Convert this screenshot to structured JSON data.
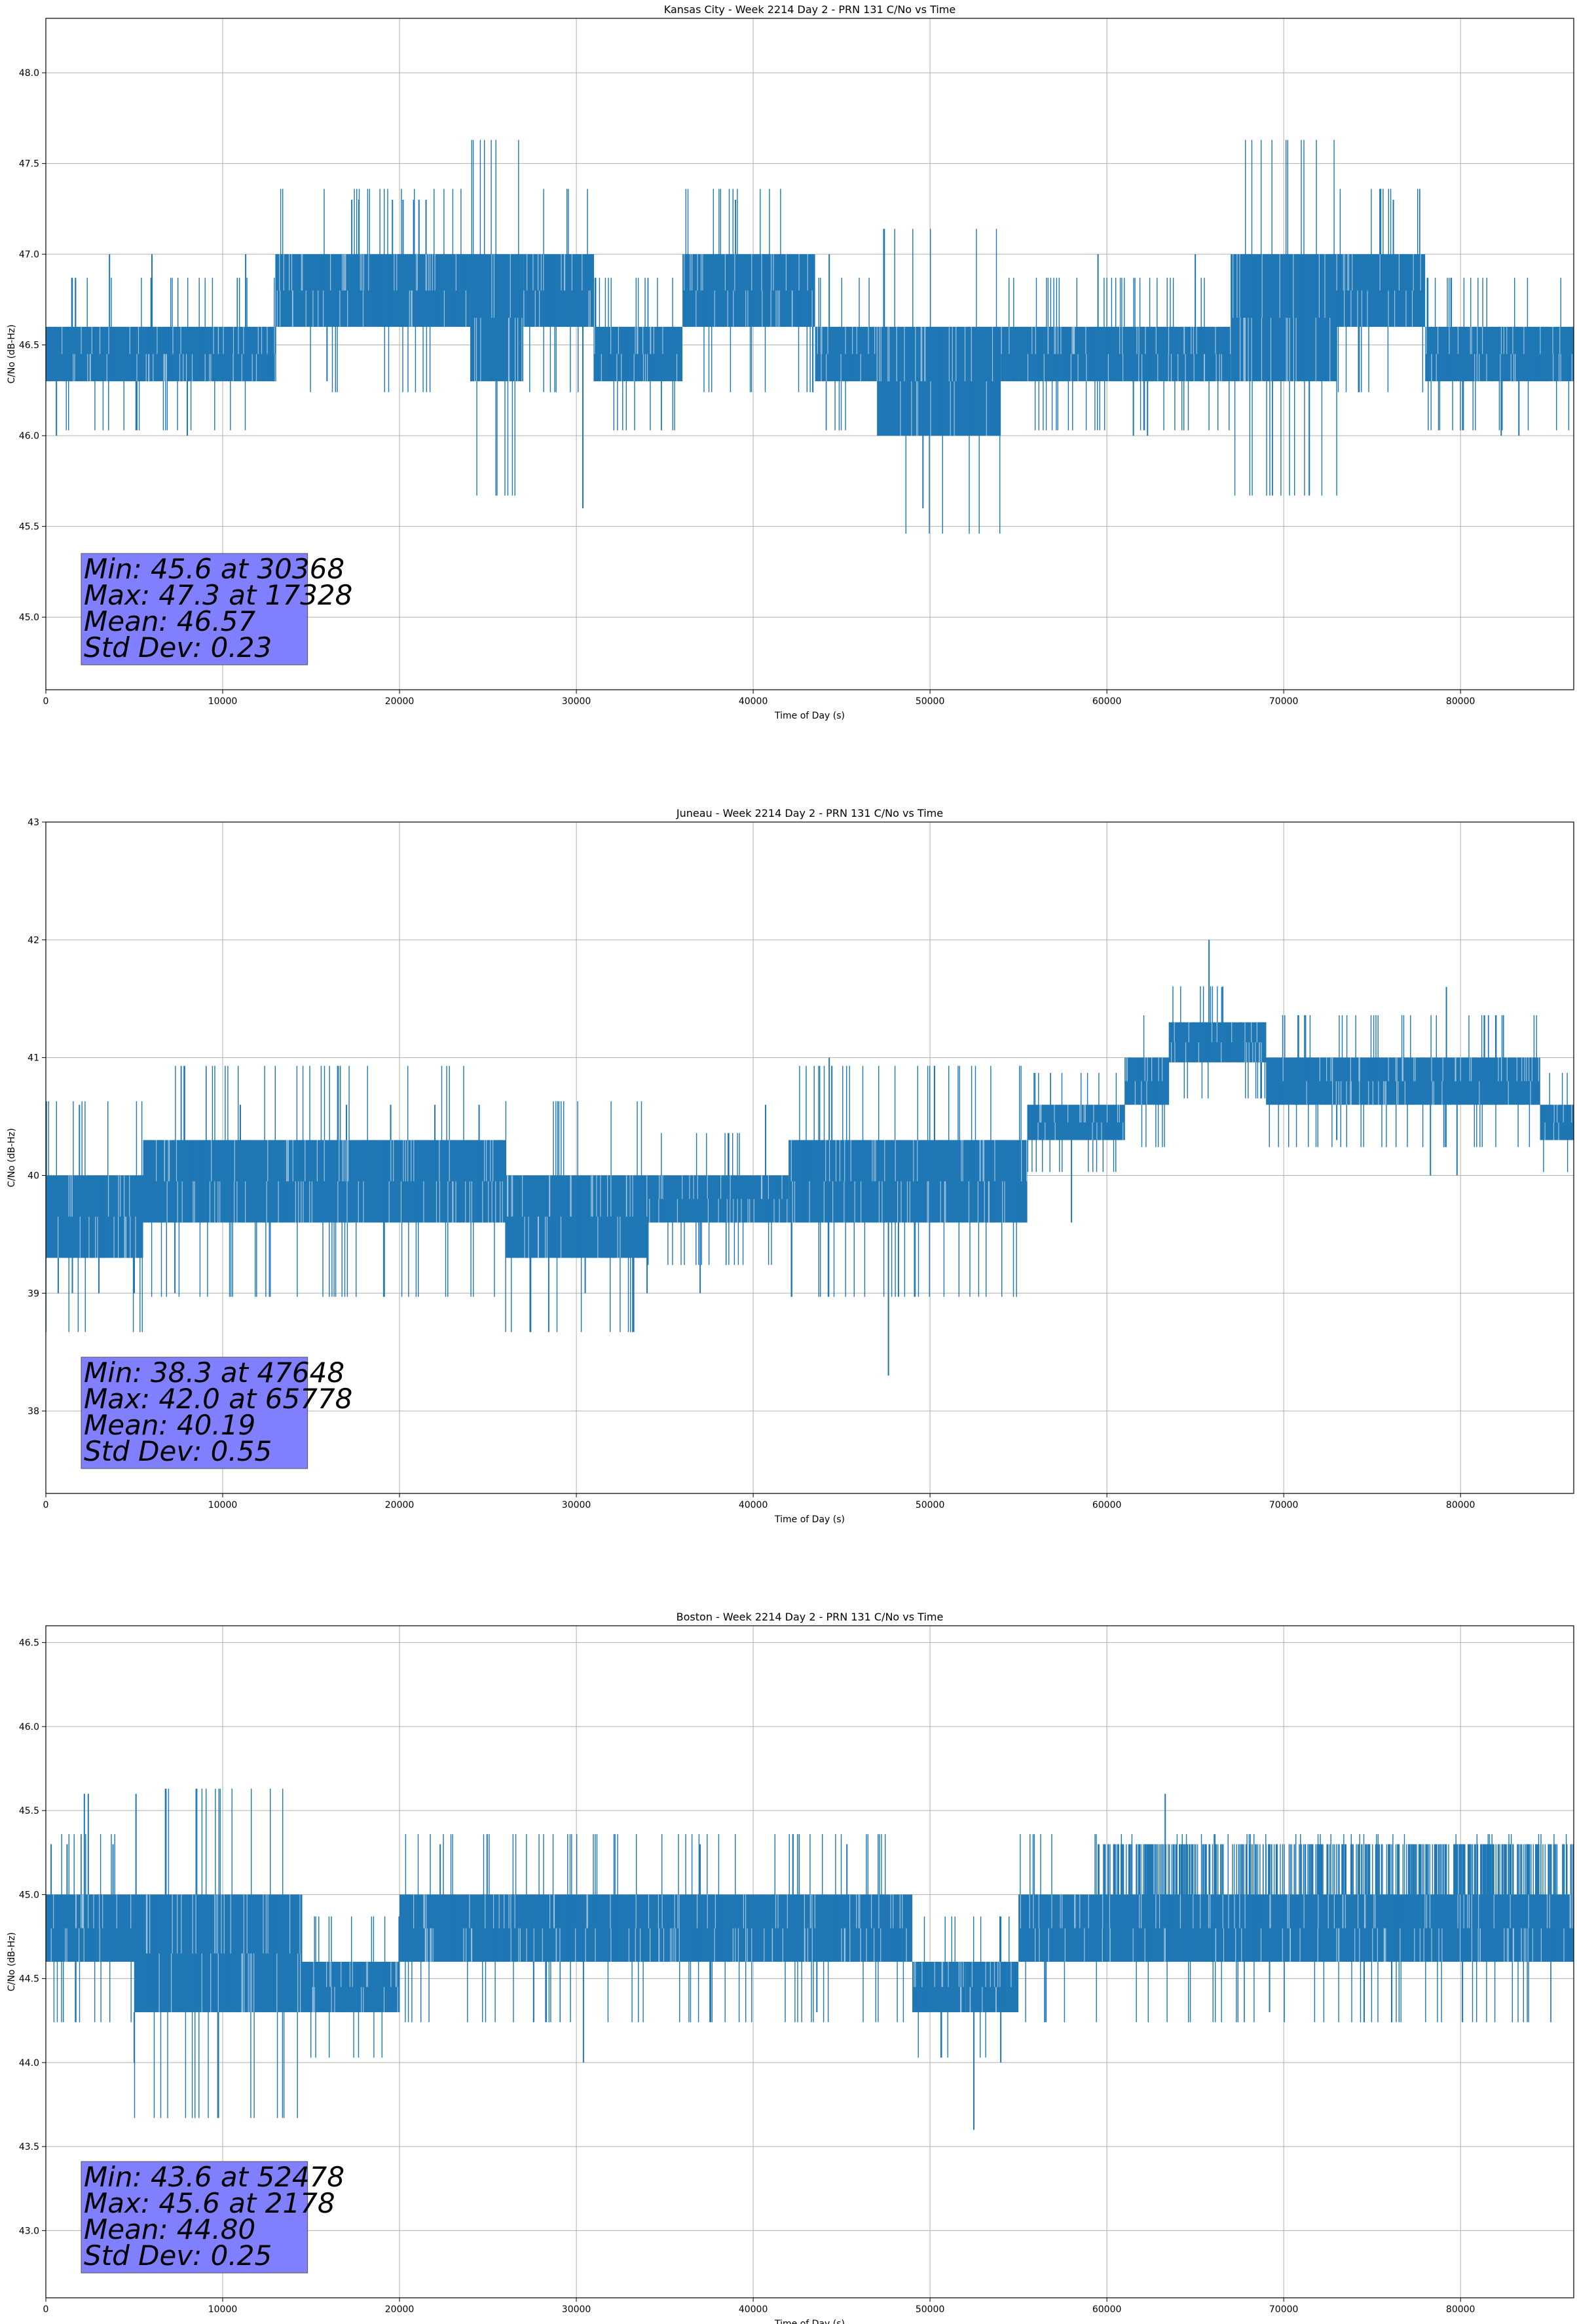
{
  "chart_data": [
    {
      "type": "line",
      "title": "Kansas City - Week 2214 Day 2 - PRN 131 C/No vs Time",
      "xlabel": "Time of Day (s)",
      "ylabel": "C/No (dB-Hz)",
      "xlim": [
        0,
        86400
      ],
      "ylim": [
        44.6,
        48.3
      ],
      "x_ticks": [
        0,
        10000,
        20000,
        30000,
        40000,
        50000,
        60000,
        70000,
        80000
      ],
      "y_ticks": [
        45.0,
        45.5,
        46.0,
        46.5,
        47.0,
        47.5,
        48.0
      ],
      "y_tick_labels": [
        "45.0",
        "45.5",
        "46.0",
        "46.5",
        "47.0",
        "47.5",
        "48.0"
      ],
      "grid": true,
      "color": "#1f77b4",
      "band_segments": [
        {
          "start": 0,
          "end": 13000,
          "low": 46.3,
          "high": 46.6
        },
        {
          "start": 13000,
          "end": 24000,
          "low": 46.6,
          "high": 47.0
        },
        {
          "start": 24000,
          "end": 27000,
          "low": 46.3,
          "high": 47.0
        },
        {
          "start": 27000,
          "end": 31000,
          "low": 46.6,
          "high": 47.0
        },
        {
          "start": 31000,
          "end": 36000,
          "low": 46.3,
          "high": 46.6
        },
        {
          "start": 36000,
          "end": 43500,
          "low": 46.6,
          "high": 47.0
        },
        {
          "start": 43500,
          "end": 47000,
          "low": 46.3,
          "high": 46.6
        },
        {
          "start": 47000,
          "end": 54000,
          "low": 46.0,
          "high": 46.6
        },
        {
          "start": 54000,
          "end": 67000,
          "low": 46.3,
          "high": 46.6
        },
        {
          "start": 67000,
          "end": 73000,
          "low": 46.3,
          "high": 47.0
        },
        {
          "start": 73000,
          "end": 78000,
          "low": 46.6,
          "high": 47.0
        },
        {
          "start": 78000,
          "end": 86400,
          "low": 46.3,
          "high": 46.6
        }
      ],
      "spikes": [
        {
          "x": 600,
          "y": 46.0
        },
        {
          "x": 3600,
          "y": 47.0
        },
        {
          "x": 5000,
          "y": 46.6
        },
        {
          "x": 6000,
          "y": 47.0
        },
        {
          "x": 8000,
          "y": 46.0
        },
        {
          "x": 11300,
          "y": 47.0
        },
        {
          "x": 15900,
          "y": 46.3
        },
        {
          "x": 17300,
          "y": 47.3
        },
        {
          "x": 17700,
          "y": 47.3
        },
        {
          "x": 19600,
          "y": 47.3
        },
        {
          "x": 20200,
          "y": 47.3
        },
        {
          "x": 20800,
          "y": 47.3
        },
        {
          "x": 21100,
          "y": 47.3
        },
        {
          "x": 21500,
          "y": 47.3
        },
        {
          "x": 30368,
          "y": 45.6
        },
        {
          "x": 39000,
          "y": 47.3
        },
        {
          "x": 44300,
          "y": 47.0
        },
        {
          "x": 49600,
          "y": 45.6
        },
        {
          "x": 59500,
          "y": 47.0
        },
        {
          "x": 61500,
          "y": 46.0
        },
        {
          "x": 62300,
          "y": 46.0
        },
        {
          "x": 65000,
          "y": 47.0
        },
        {
          "x": 76200,
          "y": 47.3
        },
        {
          "x": 82300,
          "y": 46.0
        },
        {
          "x": 83300,
          "y": 46.0
        },
        {
          "x": 85000,
          "y": 46.3
        }
      ],
      "stats": [
        "Min: 45.6 at 30368",
        "Max: 47.3 at 17328",
        "Mean: 46.57",
        "Std Dev: 0.23"
      ]
    },
    {
      "type": "line",
      "title": "Juneau - Week 2214 Day 2 - PRN 131 C/No vs Time",
      "xlabel": "Time of Day (s)",
      "ylabel": "C/No (dB-Hz)",
      "xlim": [
        0,
        86400
      ],
      "ylim": [
        37.3,
        43.0
      ],
      "x_ticks": [
        0,
        10000,
        20000,
        30000,
        40000,
        50000,
        60000,
        70000,
        80000
      ],
      "y_ticks": [
        38,
        39,
        40,
        41,
        42,
        43
      ],
      "y_tick_labels": [
        "38",
        "39",
        "40",
        "41",
        "42",
        "43"
      ],
      "grid": true,
      "color": "#1f77b4",
      "band_segments": [
        {
          "start": 0,
          "end": 5500,
          "low": 39.3,
          "high": 40.0
        },
        {
          "start": 5500,
          "end": 10000,
          "low": 39.6,
          "high": 40.3
        },
        {
          "start": 10000,
          "end": 26000,
          "low": 39.6,
          "high": 40.3
        },
        {
          "start": 26000,
          "end": 34000,
          "low": 39.3,
          "high": 40.0
        },
        {
          "start": 34000,
          "end": 42000,
          "low": 39.6,
          "high": 40.0
        },
        {
          "start": 42000,
          "end": 47000,
          "low": 39.6,
          "high": 40.3
        },
        {
          "start": 47000,
          "end": 55500,
          "low": 39.6,
          "high": 40.3
        },
        {
          "start": 55500,
          "end": 61000,
          "low": 40.3,
          "high": 40.6
        },
        {
          "start": 61000,
          "end": 63500,
          "low": 40.6,
          "high": 41.0
        },
        {
          "start": 63500,
          "end": 69000,
          "low": 40.96,
          "high": 41.3
        },
        {
          "start": 69000,
          "end": 79500,
          "low": 40.6,
          "high": 41.0
        },
        {
          "start": 79500,
          "end": 84500,
          "low": 40.6,
          "high": 41.0
        },
        {
          "start": 84500,
          "end": 86400,
          "low": 40.3,
          "high": 40.6
        }
      ],
      "spikes": [
        {
          "x": 700,
          "y": 39.0
        },
        {
          "x": 1500,
          "y": 39.0
        },
        {
          "x": 1900,
          "y": 40.6
        },
        {
          "x": 3000,
          "y": 39.0
        },
        {
          "x": 5000,
          "y": 39.0
        },
        {
          "x": 7300,
          "y": 39.0
        },
        {
          "x": 11000,
          "y": 40.6
        },
        {
          "x": 17000,
          "y": 40.6
        },
        {
          "x": 19500,
          "y": 40.6
        },
        {
          "x": 22000,
          "y": 40.6
        },
        {
          "x": 24500,
          "y": 40.6
        },
        {
          "x": 30500,
          "y": 39.0
        },
        {
          "x": 34000,
          "y": 39.0
        },
        {
          "x": 37000,
          "y": 39.0
        },
        {
          "x": 40700,
          "y": 40.6
        },
        {
          "x": 44300,
          "y": 41.0
        },
        {
          "x": 47648,
          "y": 38.3
        },
        {
          "x": 58000,
          "y": 39.6
        },
        {
          "x": 65778,
          "y": 42.0
        },
        {
          "x": 66500,
          "y": 41.6
        },
        {
          "x": 73000,
          "y": 40.3
        },
        {
          "x": 78300,
          "y": 40.0
        },
        {
          "x": 79200,
          "y": 41.6
        },
        {
          "x": 79800,
          "y": 40.0
        }
      ],
      "stats": [
        "Min: 38.3 at 47648",
        "Max: 42.0 at 65778",
        "Mean: 40.19",
        "Std Dev: 0.55"
      ]
    },
    {
      "type": "line",
      "title": "Boston - Week 2214 Day 2 - PRN 131 C/No vs Time",
      "xlabel": "Time of Day (s)",
      "ylabel": "C/No (dB-Hz)",
      "xlim": [
        0,
        86400
      ],
      "ylim": [
        42.6,
        46.6
      ],
      "x_ticks": [
        0,
        10000,
        20000,
        30000,
        40000,
        50000,
        60000,
        70000,
        80000
      ],
      "y_ticks": [
        43.0,
        43.5,
        44.0,
        44.5,
        45.0,
        45.5,
        46.0,
        46.5
      ],
      "y_tick_labels": [
        "43.0",
        "43.5",
        "44.0",
        "44.5",
        "45.0",
        "45.5",
        "46.0",
        "46.5"
      ],
      "grid": true,
      "color": "#1f77b4",
      "band_segments": [
        {
          "start": 0,
          "end": 5000,
          "low": 44.6,
          "high": 45.0
        },
        {
          "start": 5000,
          "end": 14500,
          "low": 44.3,
          "high": 45.0
        },
        {
          "start": 14500,
          "end": 20000,
          "low": 44.3,
          "high": 44.6
        },
        {
          "start": 20000,
          "end": 49000,
          "low": 44.6,
          "high": 45.0
        },
        {
          "start": 49000,
          "end": 52000,
          "low": 44.3,
          "high": 44.6
        },
        {
          "start": 52000,
          "end": 55000,
          "low": 44.3,
          "high": 44.6
        },
        {
          "start": 55000,
          "end": 60000,
          "low": 44.6,
          "high": 45.0
        },
        {
          "start": 60000,
          "end": 86400,
          "low": 44.6,
          "high": 45.0
        }
      ],
      "spikes": [
        {
          "x": 300,
          "y": 45.3
        },
        {
          "x": 1200,
          "y": 45.3
        },
        {
          "x": 2178,
          "y": 45.6
        },
        {
          "x": 2400,
          "y": 45.6
        },
        {
          "x": 3800,
          "y": 45.3
        },
        {
          "x": 5100,
          "y": 45.6
        },
        {
          "x": 5000,
          "y": 44.0
        },
        {
          "x": 5600,
          "y": 44.3
        },
        {
          "x": 22300,
          "y": 45.3
        },
        {
          "x": 30400,
          "y": 44.0
        },
        {
          "x": 37000,
          "y": 45.3
        },
        {
          "x": 43600,
          "y": 44.3
        },
        {
          "x": 45300,
          "y": 45.3
        },
        {
          "x": 52478,
          "y": 43.6
        },
        {
          "x": 54000,
          "y": 44.0
        },
        {
          "x": 63300,
          "y": 45.6
        },
        {
          "x": 69200,
          "y": 44.3
        },
        {
          "x": 84000,
          "y": 45.0
        }
      ],
      "dense_upper": {
        "start": 59500,
        "end": 86400,
        "high": 45.3
      },
      "stats": [
        "Min: 43.6 at 52478",
        "Max: 45.6 at 2178",
        "Mean: 44.80",
        "Std Dev: 0.25"
      ]
    }
  ]
}
